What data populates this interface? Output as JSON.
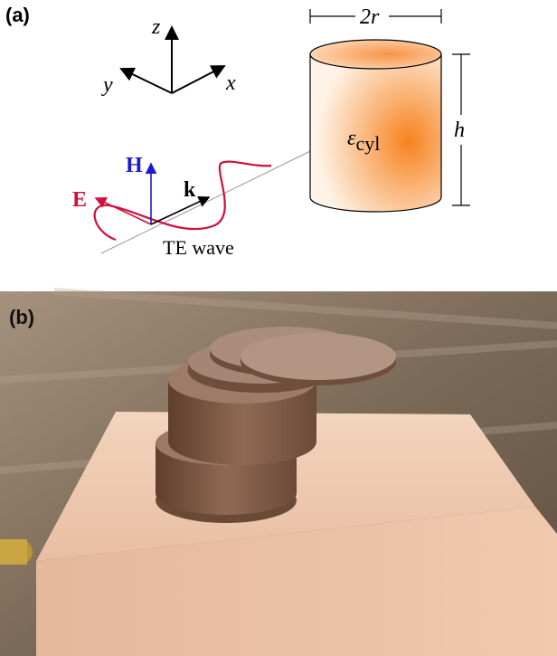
{
  "panel_a": {
    "label": "(a)",
    "axes": {
      "z": "z",
      "y": "y",
      "x": "x"
    },
    "cylinder": {
      "diameter_label": "2r",
      "height_label": "h",
      "permittivity_symbol": "ε",
      "permittivity_subscript": "cyl"
    },
    "wave": {
      "H": "H",
      "E": "E",
      "k": "k",
      "caption": "TE wave"
    }
  },
  "panel_b": {
    "label": "(b)"
  }
}
